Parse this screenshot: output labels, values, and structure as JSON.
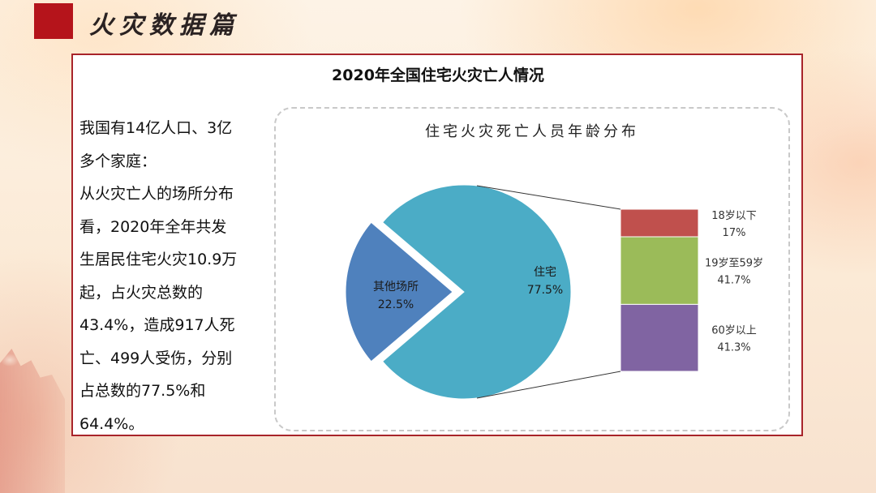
{
  "header": {
    "title": "火灾数据篇"
  },
  "panel": {
    "title": "2020年全国住宅火灾亡人情况",
    "body_lines": [
      "我国有14亿人口、3亿",
      "多个家庭：",
      "从火灾亡人的场所分布",
      "看，2020年全年共发",
      "生居民住宅火灾10.9万",
      "起，占火灾总数的",
      "43.4%，造成917人死",
      "亡、499人受伤，分别",
      "占总数的77.5%和",
      "64.4%。"
    ]
  },
  "chart_data": {
    "type": "pie",
    "title": "住宅火灾死亡人员年龄分布",
    "pie": [
      {
        "label": "住宅",
        "value_label": "77.5%",
        "value": 77.5,
        "color": "#4bacc6"
      },
      {
        "label": "其他场所",
        "value_label": "22.5%",
        "value": 22.5,
        "color": "#4f81bd"
      }
    ],
    "breakdown_of": "住宅",
    "breakdown": [
      {
        "label": "18岁以下",
        "value_label": "17%",
        "value": 17,
        "color": "#c0504d"
      },
      {
        "label": "19岁至59岁",
        "value_label": "41.7%",
        "value": 41.7,
        "color": "#9bbb59"
      },
      {
        "label": "60岁以上",
        "value_label": "41.3%",
        "value": 41.3,
        "color": "#8064a2"
      }
    ]
  }
}
